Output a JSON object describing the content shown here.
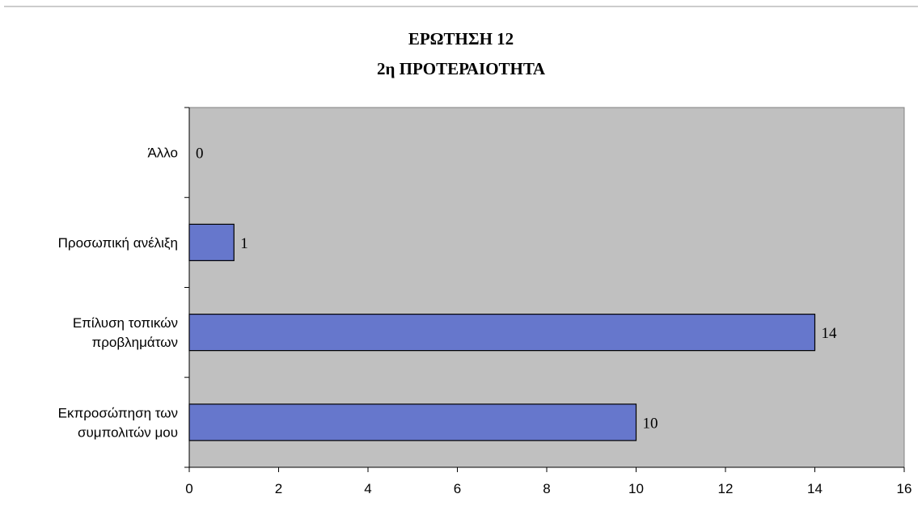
{
  "chart_data": {
    "type": "bar",
    "orientation": "horizontal",
    "title": "ΕΡΩΤΗΣΗ 12",
    "subtitle": "2η ΠΡΟΤΕΡΑΙΟΤΗΤΑ",
    "categories": [
      "Άλλο",
      "Προσωπική ανέλιξη",
      "Επίλυση τοπικών προβλημάτων",
      "Εκπροσώπηση των συμπολιτών μου"
    ],
    "values": [
      0,
      1,
      14,
      10
    ],
    "xlim": [
      0,
      16
    ],
    "x_ticks": [
      0,
      2,
      4,
      6,
      8,
      10,
      12,
      14,
      16
    ],
    "grid": false,
    "legend": "none",
    "colors": {
      "bar": "#6677cc",
      "plot_background": "#c0c0c0",
      "axis": "#000000"
    }
  }
}
